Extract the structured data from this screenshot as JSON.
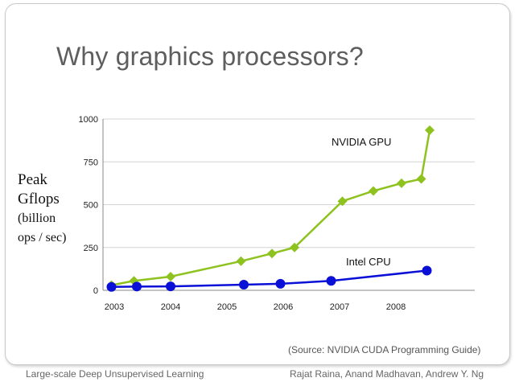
{
  "slide": {
    "title": "Why graphics processors?",
    "source_note": "(Source: NVIDIA CUDA Programming Guide)",
    "footer_left": "Large-scale Deep Unsupervised Learning",
    "footer_right": "Rajat Raina, Anand Madhavan, Andrew Y. Ng"
  },
  "ylabel_lines": [
    "Peak",
    "Gflops",
    "(billion",
    "ops / sec)"
  ],
  "chart_data": {
    "type": "line",
    "ylim": [
      0,
      1000
    ],
    "yticks": [
      0,
      250,
      500,
      750,
      1000
    ],
    "xlim": [
      2002.8,
      2009.4
    ],
    "xticks": [
      {
        "value": 2003,
        "label": "2003"
      },
      {
        "value": 2004,
        "label": "2004"
      },
      {
        "value": 2005,
        "label": "2005"
      },
      {
        "value": 2006,
        "label": "2006"
      },
      {
        "value": 2007,
        "label": "2007"
      },
      {
        "value": 2008,
        "label": "2008"
      }
    ],
    "grid": "horizontal",
    "series": [
      {
        "name": "NVIDIA GPU",
        "color": "#8dc21f",
        "marker": "diamond",
        "x": [
          2002.95,
          2003.35,
          2004.0,
          2005.25,
          2005.8,
          2006.2,
          2007.05,
          2007.6,
          2008.1,
          2008.45,
          2008.6
        ],
        "y": [
          30,
          55,
          80,
          170,
          215,
          250,
          520,
          580,
          625,
          650,
          935
        ]
      },
      {
        "name": "Intel CPU",
        "color": "#0a10d6",
        "marker": "circle",
        "x": [
          2002.95,
          2003.4,
          2004.0,
          2005.3,
          2005.95,
          2006.85,
          2008.55
        ],
        "y": [
          20,
          22,
          23,
          33,
          38,
          55,
          115
        ]
      }
    ]
  }
}
